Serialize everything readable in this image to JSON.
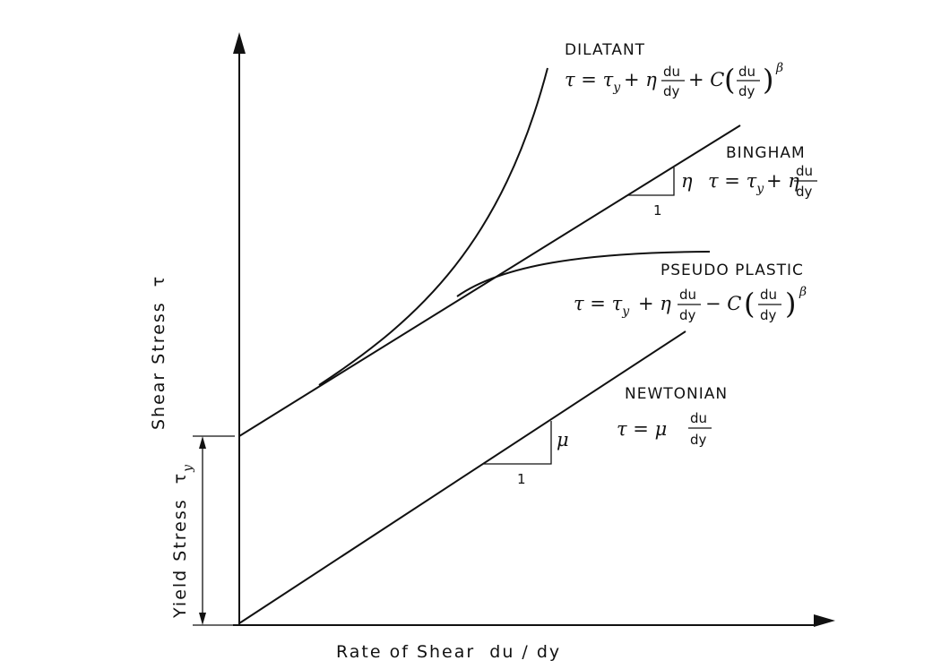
{
  "axes": {
    "x_label": "Rate of Shear  du / dy",
    "y_label": "Shear Stress  τ",
    "yield_label": "Yield Stress  τ",
    "yield_sub": "y"
  },
  "curves": {
    "dilatant": {
      "name": "DILATANT",
      "eq_a": "τ = τ",
      "eq_b": "+ η",
      "eq_c": "+ C",
      "sub": "y",
      "num": "du",
      "den": "dy",
      "exp": "β"
    },
    "bingham": {
      "name": "BINGHAM",
      "eq_a": "τ = τ",
      "eq_b": "+ η",
      "sub": "y",
      "num": "du",
      "den": "dy",
      "slope_label": "η",
      "run_label": "1"
    },
    "pseudo_plastic": {
      "name": "PSEUDO PLASTIC",
      "eq_a": "τ = τ",
      "eq_b": "+ η",
      "eq_c": "− C",
      "sub": "y",
      "num": "du",
      "den": "dy",
      "exp": "β"
    },
    "newtonian": {
      "name": "NEWTONIAN",
      "eq_a": "τ = μ",
      "num": "du",
      "den": "dy",
      "slope_label": "μ",
      "run_label": "1"
    }
  }
}
